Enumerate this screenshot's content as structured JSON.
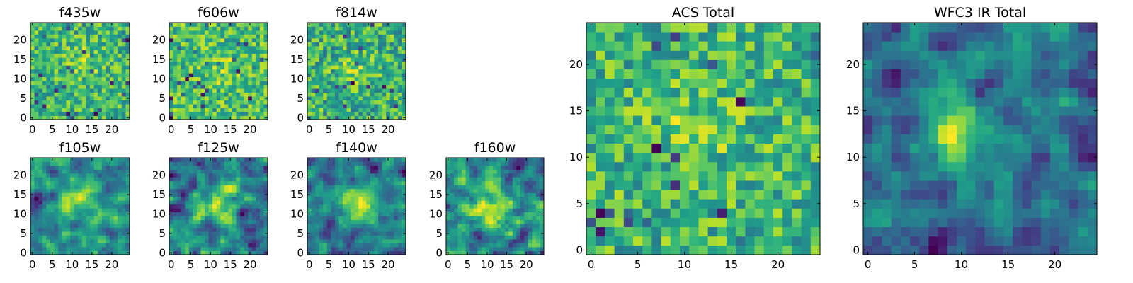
{
  "chart_data": [
    {
      "type": "heatmap",
      "title": "f435w",
      "colormap": "viridis",
      "xlim": [
        0,
        24
      ],
      "ylim": [
        0,
        24
      ],
      "xticks": [
        "0",
        "5",
        "10",
        "15",
        "20"
      ],
      "yticks": [
        "0",
        "5",
        "10",
        "15",
        "20"
      ],
      "peak": [
        13,
        15
      ],
      "texture": "noise",
      "grid": false
    },
    {
      "type": "heatmap",
      "title": "f606w",
      "colormap": "viridis",
      "xlim": [
        0,
        24
      ],
      "ylim": [
        0,
        24
      ],
      "xticks": [
        "0",
        "5",
        "10",
        "15",
        "20"
      ],
      "yticks": [
        "0",
        "5",
        "10",
        "15",
        "20"
      ],
      "peak": [
        12,
        13
      ],
      "texture": "noise",
      "grid": false
    },
    {
      "type": "heatmap",
      "title": "f814w",
      "colormap": "viridis",
      "xlim": [
        0,
        24
      ],
      "ylim": [
        0,
        24
      ],
      "xticks": [
        "0",
        "5",
        "10",
        "15",
        "20"
      ],
      "yticks": [
        "0",
        "5",
        "10",
        "15",
        "20"
      ],
      "peak": [
        12,
        12
      ],
      "texture": "noise",
      "grid": false
    },
    {
      "type": "heatmap",
      "title": "f105w",
      "colormap": "viridis",
      "xlim": [
        0,
        24
      ],
      "ylim": [
        0,
        24
      ],
      "xticks": [
        "0",
        "5",
        "10",
        "15",
        "20"
      ],
      "yticks": [
        "0",
        "5",
        "10",
        "15",
        "20"
      ],
      "peak": [
        12,
        13
      ],
      "texture": "smooth",
      "grid": false
    },
    {
      "type": "heatmap",
      "title": "f125w",
      "colormap": "viridis",
      "xlim": [
        0,
        24
      ],
      "ylim": [
        0,
        24
      ],
      "xticks": [
        "0",
        "5",
        "10",
        "15",
        "20"
      ],
      "yticks": [
        "0",
        "5",
        "10",
        "15",
        "20"
      ],
      "peak": [
        12,
        13
      ],
      "texture": "smooth",
      "grid": false
    },
    {
      "type": "heatmap",
      "title": "f140w",
      "colormap": "viridis",
      "xlim": [
        0,
        24
      ],
      "ylim": [
        0,
        24
      ],
      "xticks": [
        "0",
        "5",
        "10",
        "15",
        "20"
      ],
      "yticks": [
        "0",
        "5",
        "10",
        "15",
        "20"
      ],
      "peak": [
        12,
        12
      ],
      "texture": "smooth",
      "grid": false
    },
    {
      "type": "heatmap",
      "title": "f160w",
      "colormap": "viridis",
      "xlim": [
        0,
        24
      ],
      "ylim": [
        0,
        24
      ],
      "xticks": [
        "0",
        "5",
        "10",
        "15",
        "20"
      ],
      "yticks": [
        "0",
        "5",
        "10",
        "15",
        "20"
      ],
      "peak": [
        11,
        12
      ],
      "texture": "smooth",
      "grid": false
    },
    {
      "type": "heatmap",
      "title": "ACS Total",
      "colormap": "viridis",
      "xlim": [
        0,
        24
      ],
      "ylim": [
        0,
        24
      ],
      "xticks": [
        "0",
        "5",
        "10",
        "15",
        "20"
      ],
      "yticks": [
        "0",
        "5",
        "10",
        "15",
        "20"
      ],
      "peak": [
        11,
        13
      ],
      "texture": "noise",
      "grid": false
    },
    {
      "type": "heatmap",
      "title": "WFC3 IR Total",
      "colormap": "viridis",
      "xlim": [
        0,
        24
      ],
      "ylim": [
        0,
        24
      ],
      "xticks": [
        "0",
        "5",
        "10",
        "15",
        "20"
      ],
      "yticks": [
        "0",
        "5",
        "10",
        "15",
        "20"
      ],
      "peak": [
        11,
        13
      ],
      "texture": "smooth",
      "grid": false
    }
  ]
}
